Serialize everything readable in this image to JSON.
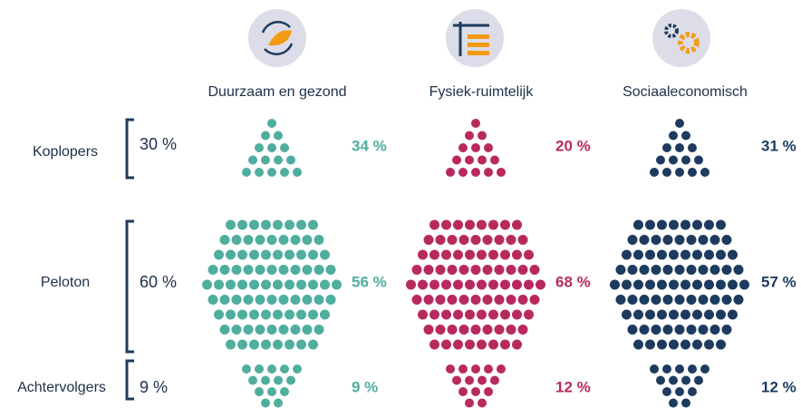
{
  "rows": [
    {
      "label": "Koplopers",
      "share": "30 %"
    },
    {
      "label": "Peloton",
      "share": "60 %"
    },
    {
      "label": "Achtervolgers",
      "share": "9 %"
    }
  ],
  "columns": [
    {
      "title": "Duurzaam en gezond",
      "color": "#4fae9e",
      "values": [
        "34 %",
        "56 %",
        "9 %"
      ]
    },
    {
      "title": "Fysiek-ruimtelijk",
      "color": "#b82a5e",
      "values": [
        "20 %",
        "68 %",
        "12 %"
      ]
    },
    {
      "title": "Sociaaleconomisch",
      "color": "#1d3b5e",
      "values": [
        "31 %",
        "57 %",
        "12 %"
      ]
    }
  ]
}
